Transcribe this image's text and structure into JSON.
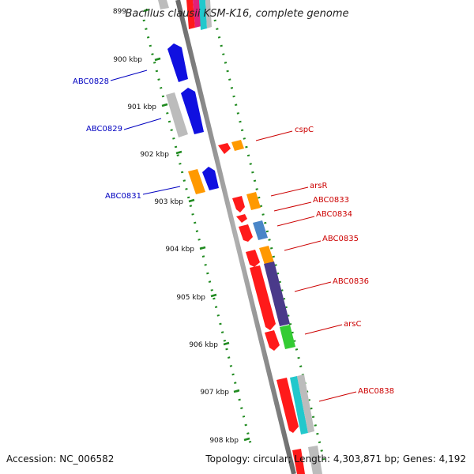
{
  "title": "Bacillus clausii KSM-K16, complete genome",
  "footer": {
    "accession": "Accession: NC_006582",
    "summary": "Topology: circular; Length: 4,303,871 bp; Genes: 4,192"
  },
  "kbp_labels": [
    "899",
    "900 kbp",
    "901 kbp",
    "902 kbp",
    "903 kbp",
    "904 kbp",
    "905 kbp",
    "906 kbp",
    "907 kbp",
    "908 kbp"
  ],
  "genes": {
    "forward_strand": [
      "ABC0828",
      "ABC0829",
      "ABC0831"
    ],
    "reverse_strand": [
      "cspC",
      "arsR",
      "ABC0833",
      "ABC0834",
      "ABC0835",
      "ABC0836",
      "arsC",
      "ABC0838"
    ]
  },
  "colors": {
    "backbone": "#8c8c8c",
    "tick_dots": "#1f8a1f",
    "forward_label": "#0000c0",
    "reverse_label": "#cc0000",
    "red_gene": "#ff1a1a",
    "blue_gene": "#1010e0",
    "orange_gene": "#ff9900",
    "steel_gene": "#4a86c8",
    "purple_gene": "#4a3a8a",
    "green_gene": "#33cc33",
    "cyan_gene": "#22c8cc",
    "gray_gene": "#bcbcbc",
    "pink_gene": "#e0207a"
  }
}
